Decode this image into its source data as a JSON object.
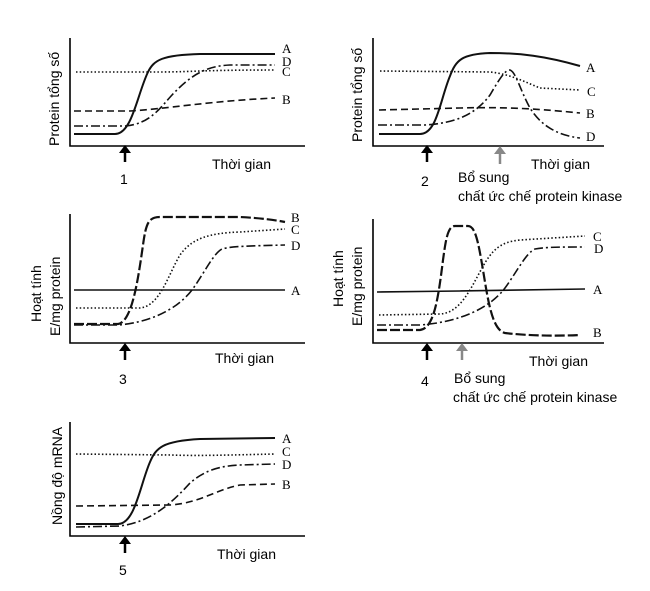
{
  "panels": [
    {
      "number": "1",
      "ylabel": [
        "Protein tổng số"
      ],
      "xlabel": "Thời gian",
      "note": [],
      "curves": {
        "A": "A",
        "B": "B",
        "C": "C",
        "D": "D"
      }
    },
    {
      "number": "2",
      "ylabel": [
        "Protein tổng số"
      ],
      "xlabel": "Thời gian",
      "note": [
        "Bổ sung",
        "chất ức chế protein kinase"
      ],
      "curves": {
        "A": "A",
        "B": "B",
        "C": "C",
        "D": "D"
      }
    },
    {
      "number": "3",
      "ylabel": [
        "Hoạt tính",
        "E/mg protein"
      ],
      "xlabel": "Thời gian",
      "note": [],
      "curves": {
        "A": "A",
        "B": "B",
        "C": "C",
        "D": "D"
      }
    },
    {
      "number": "4",
      "ylabel": [
        "Hoạt tính",
        "E/mg protein"
      ],
      "xlabel": "Thời gian",
      "note": [
        "Bổ sung",
        "chất ức chế protein kinase"
      ],
      "curves": {
        "A": "A",
        "B": "B",
        "C": "C",
        "D": "D"
      }
    },
    {
      "number": "5",
      "ylabel": [
        "Nồng độ mRNA"
      ],
      "xlabel": "Thời gian",
      "note": [],
      "curves": {
        "A": "A",
        "B": "B",
        "C": "C",
        "D": "D"
      }
    }
  ],
  "colors": {
    "curve": "#111111",
    "arrow": "#000000",
    "inhibitor_arrow": "#888888"
  }
}
